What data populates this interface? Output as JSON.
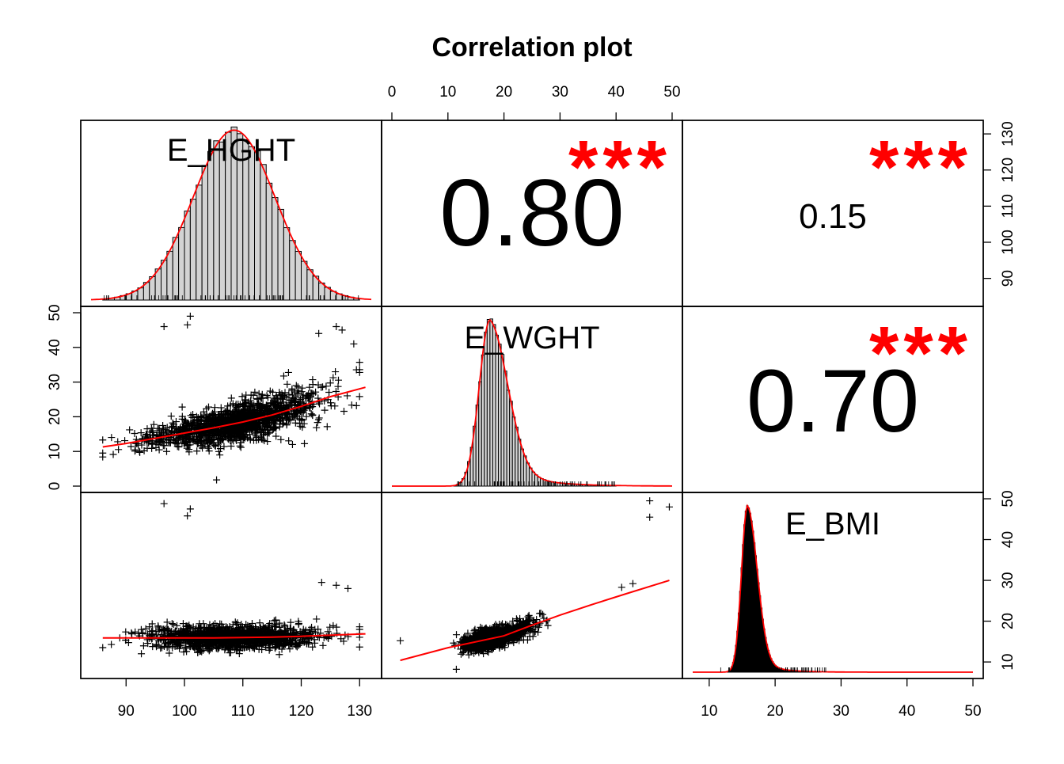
{
  "chart_data": {
    "type": "scatter",
    "title": "Correlation plot",
    "variables": [
      "E_HGHT",
      "E_WGHT",
      "E_BMI"
    ],
    "colors": {
      "fit_line": "#ff0000",
      "stars": "#ff0000",
      "points": "#000000",
      "hist_fill": "#d3d3d3",
      "bmi_hist_fill": "#000000"
    },
    "axes": {
      "E_HGHT": {
        "range": [
          84,
          132
        ],
        "ticks": [
          "90",
          "100",
          "110",
          "120",
          "130"
        ]
      },
      "E_WGHT": {
        "range": [
          0,
          50
        ],
        "ticks": [
          "0",
          "10",
          "20",
          "30",
          "40",
          "50"
        ]
      },
      "E_BMI": {
        "range": [
          7.5,
          50
        ],
        "ticks": [
          "10",
          "20",
          "30",
          "40",
          "50"
        ]
      }
    },
    "correlations": [
      {
        "pair": [
          "E_HGHT",
          "E_WGHT"
        ],
        "value": "0.80",
        "stars": "***"
      },
      {
        "pair": [
          "E_HGHT",
          "E_BMI"
        ],
        "value": "0.15",
        "stars": "***"
      },
      {
        "pair": [
          "E_WGHT",
          "E_BMI"
        ],
        "value": "0.70",
        "stars": "***"
      }
    ],
    "scatter_fits": {
      "HGHT_WGHT": [
        [
          86,
          11.3
        ],
        [
          90,
          12.3
        ],
        [
          95,
          13.8
        ],
        [
          100,
          15.3
        ],
        [
          105,
          16.8
        ],
        [
          110,
          18.5
        ],
        [
          115,
          20.5
        ],
        [
          120,
          23
        ],
        [
          125,
          25.8
        ],
        [
          131,
          28.5
        ]
      ],
      "HGHT_BMI": [
        [
          86,
          15.9
        ],
        [
          95,
          15.9
        ],
        [
          105,
          15.9
        ],
        [
          115,
          16.1
        ],
        [
          120,
          16.3
        ],
        [
          131,
          16.9
        ]
      ],
      "WGHT_BMI": [
        [
          1.5,
          10.4
        ],
        [
          10,
          13.5
        ],
        [
          20,
          16.4
        ],
        [
          25,
          19
        ],
        [
          30,
          21.5
        ],
        [
          36,
          24.2
        ],
        [
          42,
          26.8
        ],
        [
          49.5,
          30
        ]
      ]
    },
    "outliers": {
      "HGHT_WGHT": [
        [
          96.5,
          46
        ],
        [
          100.5,
          46.5
        ],
        [
          101,
          49
        ],
        [
          105.5,
          1.8
        ],
        [
          118.5,
          12
        ],
        [
          123,
          44
        ],
        [
          126,
          46
        ],
        [
          127,
          45
        ],
        [
          129,
          41
        ]
      ],
      "HGHT_BMI": [
        [
          96.5,
          48.8
        ],
        [
          100.5,
          45.8
        ],
        [
          101,
          47.5
        ],
        [
          123.5,
          29.5
        ],
        [
          126,
          28.8
        ],
        [
          128,
          28
        ]
      ],
      "WGHT_BMI": [
        [
          1.5,
          15.2
        ],
        [
          11.5,
          8.2
        ],
        [
          46,
          49.5
        ],
        [
          46,
          45.5
        ],
        [
          49.5,
          48
        ],
        [
          41,
          28.3
        ],
        [
          43,
          29.2
        ]
      ]
    },
    "histograms": {
      "E_HGHT": {
        "mean": 108.5,
        "sd": 7.0
      },
      "E_WGHT": {
        "mode": 17.5
      },
      "E_BMI": {
        "mode": 15.8
      }
    }
  }
}
